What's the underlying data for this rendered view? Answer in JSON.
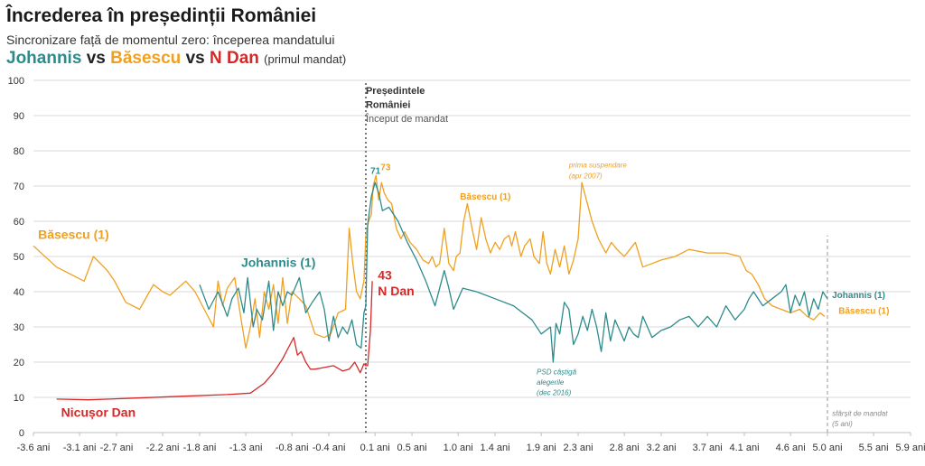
{
  "title": "Încrederea în președinții României",
  "subtitle": "Sincronizare față de momentul zero: începerea mandatului",
  "comparison": {
    "johannis": "Johannis",
    "vs1": "vs",
    "basescu": "Băsescu",
    "vs2": "vs",
    "dan": "N Dan",
    "note": "(primul mandat)"
  },
  "colors": {
    "johannis": "#2e8b8b",
    "basescu": "#f0a020",
    "dan": "#d62828",
    "grid": "#d9d9d9",
    "marker": "#777777"
  },
  "chart_data": {
    "type": "line",
    "xlim": [
      -3.6,
      5.9
    ],
    "ylim": [
      0,
      100
    ],
    "grid": true,
    "ytick_values": [
      0,
      10,
      20,
      30,
      40,
      50,
      60,
      70,
      80,
      90,
      100
    ],
    "ytick_labels": [
      "0",
      "10",
      "20",
      "30",
      "40",
      "50",
      "60",
      "70",
      "80",
      "90",
      "100"
    ],
    "xtick_values": [
      -3.6,
      -3.1,
      -2.7,
      -2.2,
      -1.8,
      -1.3,
      -0.8,
      -0.4,
      0.1,
      0.5,
      1.0,
      1.4,
      1.9,
      2.3,
      2.8,
      3.2,
      3.7,
      4.1,
      4.6,
      5.0,
      5.5,
      5.9
    ],
    "xtick_labels": [
      "-3.6 ani",
      "-3.1 ani",
      "-2.7 ani",
      "-2.2 ani",
      "-1.8 ani",
      "-1.3 ani",
      "-0.8 ani",
      "-0.4 ani",
      "0.1 ani",
      "0.5 ani",
      "1.0 ani",
      "1.4 ani",
      "1.9 ani",
      "2.3 ani",
      "2.8 ani",
      "3.2 ani",
      "3.7 ani",
      "4.1 ani",
      "4.6 ani",
      "5.0 ani",
      "5.5 ani",
      "5.9 ani"
    ],
    "series": [
      {
        "name": "Băsescu (1)",
        "color": "#f0a020",
        "x": [
          -3.6,
          -3.35,
          -3.05,
          -2.95,
          -2.8,
          -2.72,
          -2.6,
          -2.45,
          -2.3,
          -2.2,
          -2.12,
          -1.95,
          -1.85,
          -1.75,
          -1.65,
          -1.6,
          -1.55,
          -1.5,
          -1.42,
          -1.35,
          -1.3,
          -1.25,
          -1.2,
          -1.15,
          -1.1,
          -1.05,
          -1.0,
          -0.95,
          -0.9,
          -0.85,
          -0.8,
          -0.72,
          -0.65,
          -0.55,
          -0.45,
          -0.38,
          -0.3,
          -0.22,
          -0.18,
          -0.14,
          -0.1,
          -0.06,
          -0.02,
          0.0,
          0.03,
          0.06,
          0.08,
          0.11,
          0.14,
          0.17,
          0.2,
          0.24,
          0.28,
          0.33,
          0.38,
          0.42,
          0.48,
          0.55,
          0.62,
          0.68,
          0.72,
          0.76,
          0.8,
          0.85,
          0.9,
          0.95,
          0.98,
          1.02,
          1.06,
          1.1,
          1.15,
          1.2,
          1.25,
          1.3,
          1.35,
          1.4,
          1.45,
          1.5,
          1.55,
          1.58,
          1.62,
          1.68,
          1.72,
          1.78,
          1.82,
          1.88,
          1.92,
          1.96,
          2.0,
          2.05,
          2.1,
          2.15,
          2.2,
          2.25,
          2.3,
          2.34,
          2.38,
          2.45,
          2.52,
          2.6,
          2.66,
          2.72,
          2.8,
          2.86,
          2.92,
          3.0,
          3.1,
          3.2,
          3.35,
          3.5,
          3.7,
          3.9,
          4.05,
          4.12,
          4.18,
          4.25,
          4.32,
          4.4,
          4.5,
          4.6,
          4.7,
          4.78,
          4.85,
          4.92,
          4.97
        ],
        "y": [
          53,
          47,
          43,
          50,
          46,
          43,
          37,
          35,
          42,
          40,
          39,
          43,
          40,
          35,
          30,
          43,
          36,
          41,
          44,
          32,
          24,
          30,
          38,
          27,
          40,
          35,
          42,
          31,
          44,
          31,
          40,
          38,
          36,
          28,
          27,
          28,
          34,
          35,
          58,
          48,
          40,
          38,
          43,
          56,
          60,
          62,
          70,
          73,
          66,
          71,
          68,
          66,
          65,
          58,
          55,
          57,
          54,
          52,
          49,
          48,
          50,
          47,
          48,
          58,
          48,
          46,
          50,
          51,
          60,
          65,
          58,
          52,
          61,
          55,
          51,
          54,
          52,
          55,
          56,
          53,
          57,
          50,
          53,
          55,
          50,
          48,
          57,
          48,
          45,
          52,
          47,
          53,
          45,
          49,
          55,
          71,
          67,
          60,
          55,
          51,
          54,
          52,
          50,
          52,
          54,
          47,
          48,
          49,
          50,
          52,
          51,
          51,
          50,
          46,
          45,
          42,
          38,
          36,
          35,
          34,
          35,
          33,
          32,
          34,
          33
        ]
      },
      {
        "name": "Johannis (1)",
        "color": "#2e8b8b",
        "x": [
          -1.8,
          -1.7,
          -1.6,
          -1.5,
          -1.45,
          -1.38,
          -1.32,
          -1.28,
          -1.22,
          -1.18,
          -1.12,
          -1.05,
          -1.0,
          -0.95,
          -0.9,
          -0.85,
          -0.8,
          -0.72,
          -0.65,
          -0.58,
          -0.5,
          -0.45,
          -0.4,
          -0.35,
          -0.3,
          -0.25,
          -0.2,
          -0.15,
          -0.1,
          -0.05,
          -0.02,
          0.0,
          0.02,
          0.06,
          0.1,
          0.14,
          0.18,
          0.25,
          0.35,
          0.45,
          0.55,
          0.65,
          0.75,
          0.85,
          0.9,
          0.95,
          1.05,
          1.2,
          1.4,
          1.6,
          1.8,
          1.9,
          2.0,
          2.03,
          2.06,
          2.1,
          2.15,
          2.2,
          2.25,
          2.3,
          2.35,
          2.4,
          2.45,
          2.5,
          2.55,
          2.6,
          2.65,
          2.7,
          2.75,
          2.8,
          2.85,
          2.9,
          2.95,
          3.0,
          3.1,
          3.2,
          3.3,
          3.4,
          3.5,
          3.6,
          3.7,
          3.8,
          3.9,
          4.0,
          4.1,
          4.15,
          4.2,
          4.3,
          4.4,
          4.5,
          4.55,
          4.6,
          4.65,
          4.7,
          4.75,
          4.8,
          4.85,
          4.9,
          4.95,
          5.0
        ],
        "y": [
          42,
          35,
          40,
          33,
          38,
          41,
          34,
          44,
          30,
          35,
          32,
          43,
          29,
          40,
          36,
          40,
          39,
          44,
          34,
          37,
          40,
          35,
          26,
          33,
          27,
          30,
          28,
          32,
          25,
          24,
          34,
          36,
          59,
          67,
          71,
          68,
          63,
          64,
          60,
          54,
          49,
          43,
          36,
          46,
          41,
          35,
          41,
          40,
          38,
          36,
          32,
          28,
          30,
          20,
          31,
          28,
          37,
          35,
          25,
          28,
          33,
          29,
          35,
          30,
          23,
          34,
          26,
          32,
          29,
          26,
          30,
          28,
          27,
          33,
          27,
          29,
          30,
          32,
          33,
          30,
          33,
          30,
          36,
          32,
          35,
          38,
          40,
          36,
          38,
          40,
          42,
          34,
          39,
          36,
          40,
          33,
          38,
          35,
          40,
          38
        ]
      },
      {
        "name": "Nicușor Dan",
        "color": "#d62828",
        "x": [
          -3.35,
          -3.0,
          -2.5,
          -2.0,
          -1.5,
          -1.25,
          -1.1,
          -1.0,
          -0.9,
          -0.82,
          -0.78,
          -0.74,
          -0.7,
          -0.65,
          -0.6,
          -0.55,
          -0.45,
          -0.35,
          -0.25,
          -0.18,
          -0.12,
          -0.06,
          -0.02,
          0.0,
          0.02,
          0.05,
          0.07
        ],
        "y": [
          9.5,
          9.3,
          9.8,
          10.3,
          10.8,
          11.2,
          14,
          17,
          21,
          25,
          27,
          22,
          23,
          20,
          18,
          18,
          18.5,
          19,
          17.5,
          18,
          20,
          17,
          19.5,
          19,
          19,
          29,
          43
        ]
      }
    ],
    "annotations": [
      {
        "id": "label_basescu_left",
        "text": "Băsescu (1)",
        "series": "Băsescu (1)",
        "x": -3.55,
        "y": 55,
        "size": 14,
        "bold": true,
        "color": "#f0a020"
      },
      {
        "id": "label_johannis_mid",
        "text": "Johannis (1)",
        "series": "Johannis (1)",
        "x": -1.35,
        "y": 47,
        "size": 14,
        "bold": true,
        "color": "#2e8b8b"
      },
      {
        "id": "label_dan_bottom",
        "text": "Nicușor Dan",
        "series": "Nicușor Dan",
        "x": -3.3,
        "y": 4.5,
        "size": 14,
        "bold": true,
        "color": "#d62828"
      },
      {
        "id": "label_dan_value",
        "text": "43",
        "series": "Nicușor Dan",
        "x": 0.13,
        "y": 43.5,
        "size": 14,
        "bold": true,
        "color": "#d62828"
      },
      {
        "id": "label_dan_name",
        "text": "N Dan",
        "series": "Nicușor Dan",
        "x": 0.13,
        "y": 39,
        "size": 14,
        "bold": true,
        "color": "#d62828"
      },
      {
        "id": "label_johannis_peak",
        "text": "71",
        "series": "Johannis (1)",
        "x": 0.05,
        "y": 73.5,
        "size": 10,
        "bold": true,
        "color": "#2e8b8b"
      },
      {
        "id": "label_basescu_peak",
        "text": "73",
        "series": "Băsescu (1)",
        "x": 0.16,
        "y": 74.5,
        "size": 10,
        "bold": true,
        "color": "#f0a020"
      },
      {
        "id": "label_basescu_mid",
        "text": "Băsescu (1)",
        "series": "Băsescu (1)",
        "x": 1.02,
        "y": 66.2,
        "size": 10,
        "bold": true,
        "color": "#f0a020"
      },
      {
        "id": "label_johannis_right",
        "text": "Johannis (1)",
        "series": "Johannis (1)",
        "x": 5.05,
        "y": 38.2,
        "size": 10,
        "bold": true,
        "color": "#2e8b8b"
      },
      {
        "id": "label_basescu_right",
        "text": "Băsescu (1)",
        "series": "Băsescu (1)",
        "x": 5.12,
        "y": 33.7,
        "size": 10,
        "bold": true,
        "color": "#f0a020"
      },
      {
        "id": "note_start_1",
        "text": "Președintele",
        "x": 0.0,
        "y": 96.2,
        "size": 11,
        "bold": true,
        "color": "#333333"
      },
      {
        "id": "note_start_2",
        "text": "României",
        "x": 0.0,
        "y": 92.2,
        "size": 11,
        "bold": true,
        "color": "#333333"
      },
      {
        "id": "note_start_3",
        "text": "Început de mandat",
        "x": 0.0,
        "y": 88.2,
        "size": 11,
        "bold": false,
        "color": "#555555"
      },
      {
        "id": "note_suspend_1",
        "text": "prima suspendare",
        "x": 2.2,
        "y": 75.2,
        "size": 8,
        "italic": true,
        "color": "#f0a020"
      },
      {
        "id": "note_suspend_2",
        "text": "(apr 2007)",
        "x": 2.2,
        "y": 72.2,
        "size": 8,
        "italic": true,
        "color": "#f0a020"
      },
      {
        "id": "note_psd_1",
        "text": "PSD câștigă",
        "x": 1.85,
        "y": 16.6,
        "size": 8,
        "italic": true,
        "color": "#2e8b8b"
      },
      {
        "id": "note_psd_2",
        "text": "alegerile",
        "x": 1.85,
        "y": 13.6,
        "size": 8,
        "italic": true,
        "color": "#2e8b8b"
      },
      {
        "id": "note_psd_3",
        "text": "(dec 2016)",
        "x": 1.85,
        "y": 10.6,
        "size": 8,
        "italic": true,
        "color": "#2e8b8b"
      },
      {
        "id": "note_end_1",
        "text": "sfârșit de mandat",
        "x": 5.05,
        "y": 4.8,
        "size": 8,
        "italic": true,
        "color": "#888888"
      },
      {
        "id": "note_end_2",
        "text": "(5 ani)",
        "x": 5.05,
        "y": 1.8,
        "size": 8,
        "italic": true,
        "color": "#888888"
      }
    ],
    "reference_lines": [
      {
        "id": "mandate-start",
        "x": 0.0,
        "y_from": 0,
        "y_to": 100,
        "color": "#777777",
        "dash": "2,3",
        "width": 2
      },
      {
        "id": "mandate-end",
        "x": 5.0,
        "y_from": 0,
        "y_to": 56,
        "color": "#999999",
        "dash": "4,3",
        "width": 1
      }
    ]
  }
}
